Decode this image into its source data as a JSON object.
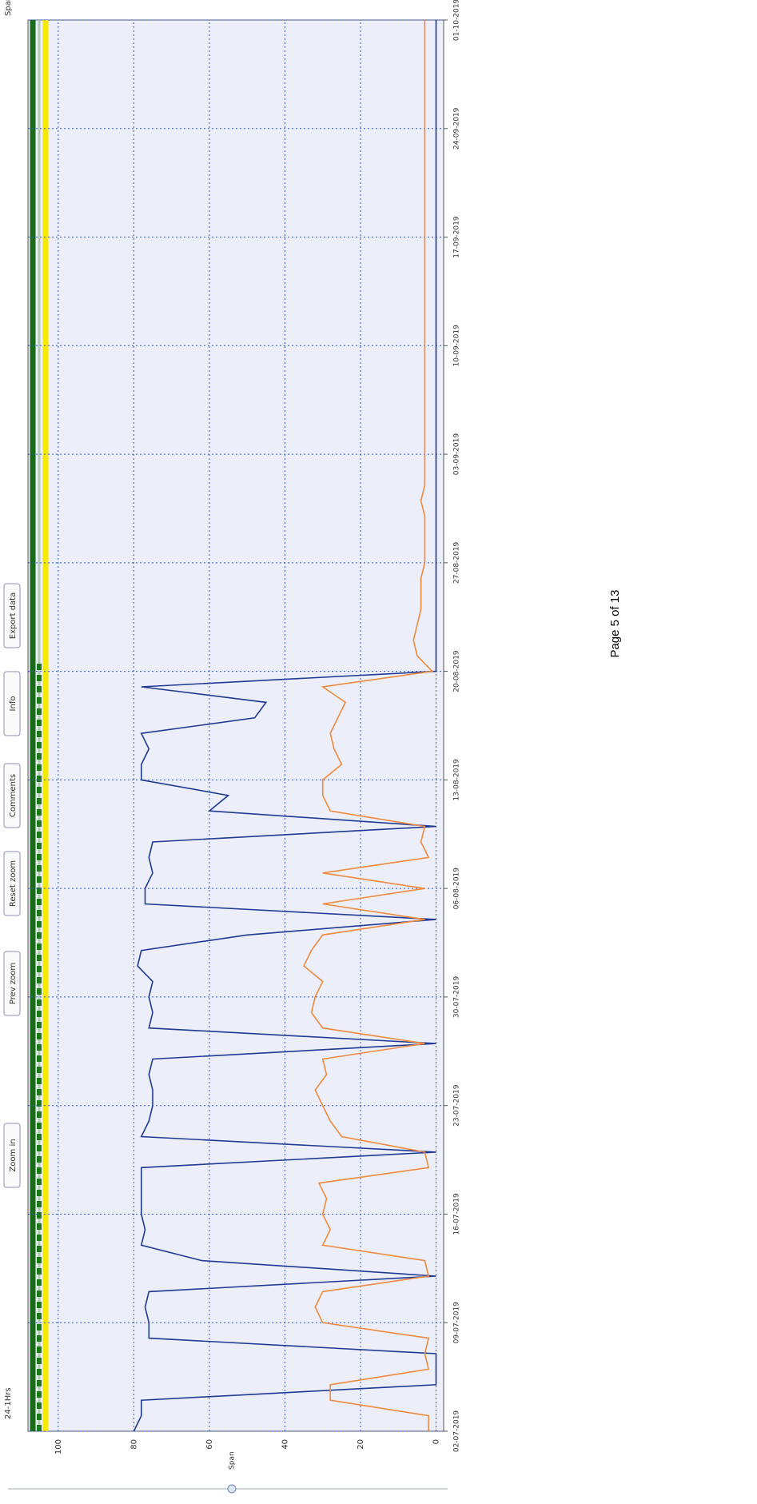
{
  "span_label": "Span",
  "toolbar": {
    "range": "24-1Hrs",
    "buttons": [
      "Zoom in",
      "Prev zoom",
      "Reset zoom",
      "Comments",
      "Info",
      "Export data"
    ]
  },
  "footer": "Page 5 of 13",
  "chart_data": {
    "type": "line",
    "x": [
      "02-07-2019",
      "03-07-2019",
      "04-07-2019",
      "05-07-2019",
      "06-07-2019",
      "07-07-2019",
      "08-07-2019",
      "09-07-2019",
      "10-07-2019",
      "11-07-2019",
      "12-07-2019",
      "13-07-2019",
      "14-07-2019",
      "15-07-2019",
      "16-07-2019",
      "17-07-2019",
      "18-07-2019",
      "19-07-2019",
      "20-07-2019",
      "21-07-2019",
      "22-07-2019",
      "23-07-2019",
      "24-07-2019",
      "25-07-2019",
      "26-07-2019",
      "27-07-2019",
      "28-07-2019",
      "29-07-2019",
      "30-07-2019",
      "31-07-2019",
      "01-08-2019",
      "02-08-2019",
      "03-08-2019",
      "04-08-2019",
      "05-08-2019",
      "06-08-2019",
      "07-08-2019",
      "08-08-2019",
      "09-08-2019",
      "10-08-2019",
      "11-08-2019",
      "12-08-2019",
      "13-08-2019",
      "14-08-2019",
      "15-08-2019",
      "16-08-2019",
      "17-08-2019",
      "18-08-2019",
      "19-08-2019",
      "20-08-2019",
      "21-08-2019",
      "22-08-2019",
      "23-08-2019",
      "24-08-2019",
      "25-08-2019",
      "26-08-2019",
      "27-08-2019",
      "28-08-2019",
      "29-08-2019",
      "30-08-2019",
      "31-08-2019",
      "01-09-2019",
      "02-09-2019",
      "03-09-2019",
      "04-09-2019",
      "05-09-2019",
      "06-09-2019",
      "07-09-2019",
      "08-09-2019",
      "09-09-2019",
      "10-09-2019",
      "11-09-2019",
      "12-09-2019",
      "13-09-2019",
      "14-09-2019",
      "15-09-2019",
      "16-09-2019",
      "17-09-2019",
      "18-09-2019",
      "19-09-2019",
      "20-09-2019",
      "21-09-2019",
      "22-09-2019",
      "23-09-2019",
      "24-09-2019",
      "25-09-2019",
      "26-09-2019",
      "27-09-2019",
      "28-09-2019",
      "29-09-2019",
      "30-09-2019",
      "01-10-2019"
    ],
    "series": [
      {
        "color": "#1f3a93",
        "values": [
          80,
          78,
          78,
          0,
          0,
          0,
          76,
          76,
          77,
          76,
          0,
          62,
          78,
          77,
          78,
          78,
          78,
          78,
          0,
          78,
          76,
          75,
          75,
          76,
          75,
          0,
          76,
          75,
          76,
          75,
          79,
          78,
          50,
          0,
          77,
          77,
          75,
          76,
          75,
          0,
          60,
          55,
          78,
          78,
          76,
          78,
          48,
          45,
          78,
          0,
          0,
          0,
          0,
          0,
          0,
          0,
          0,
          0,
          0,
          0,
          0,
          0,
          0,
          0,
          0,
          0,
          0,
          0,
          0,
          0,
          0,
          0,
          0,
          0,
          0,
          0,
          0,
          0,
          0,
          0,
          0,
          0,
          0,
          0,
          0,
          0,
          0,
          0,
          0,
          0,
          0,
          0
        ]
      },
      {
        "color": "#f08a3c",
        "values": [
          2,
          2,
          28,
          28,
          2,
          3,
          2,
          30,
          32,
          30,
          2,
          3,
          30,
          28,
          30,
          29,
          31,
          2,
          3,
          25,
          28,
          30,
          32,
          29,
          30,
          3,
          30,
          33,
          32,
          30,
          35,
          33,
          30,
          3,
          30,
          3,
          30,
          2,
          4,
          3,
          28,
          30,
          30,
          25,
          27,
          28,
          26,
          24,
          30,
          1,
          5,
          6,
          5,
          4,
          4,
          4,
          3,
          3,
          3,
          3,
          4,
          3,
          3,
          3,
          3,
          3,
          3,
          3,
          3,
          3,
          3,
          3,
          3,
          3,
          3,
          3,
          3,
          3,
          3,
          3,
          3,
          3,
          3,
          3,
          3,
          3,
          3,
          3,
          3,
          3,
          3,
          3
        ]
      }
    ],
    "xticks": [
      "02-07-2019",
      "09-07-2019",
      "16-07-2019",
      "23-07-2019",
      "30-07-2019",
      "06-08-2019",
      "13-08-2019",
      "20-08-2019",
      "27-08-2019",
      "03-09-2019",
      "10-09-2019",
      "17-09-2019",
      "24-09-2019",
      "01-10-2019"
    ],
    "ylim": [
      -2,
      108
    ],
    "yticks": [
      0,
      20,
      40,
      60,
      80,
      100
    ],
    "grid": true
  }
}
